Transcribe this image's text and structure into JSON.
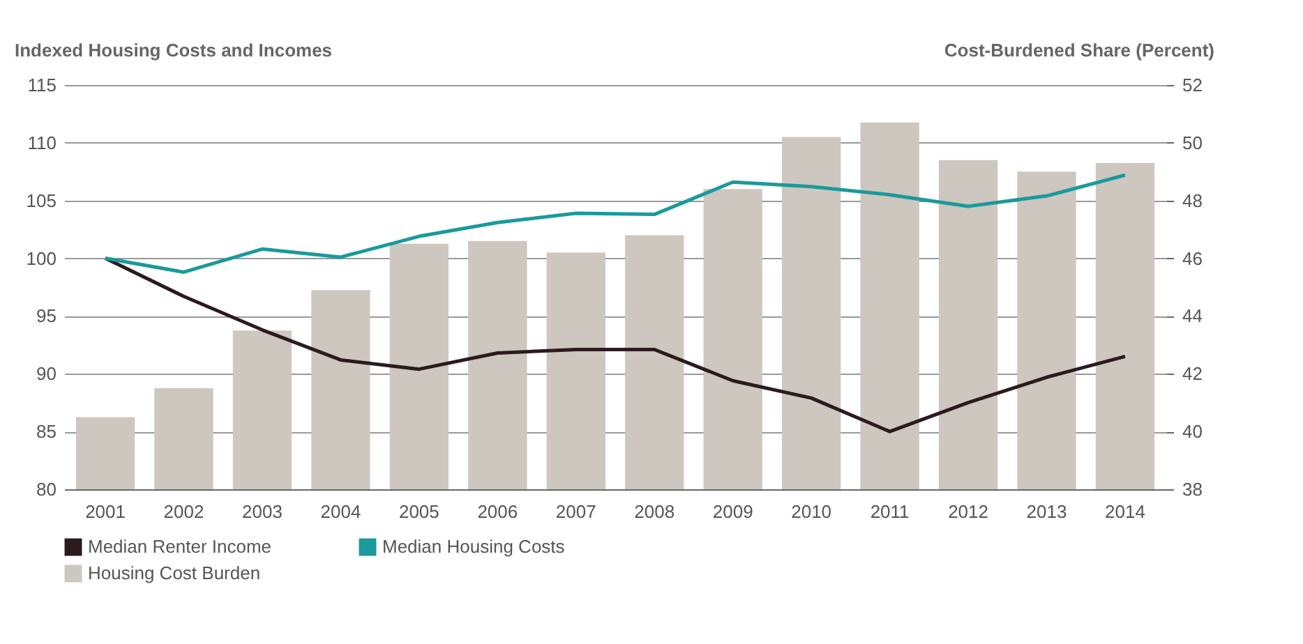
{
  "chart_data": {
    "type": "bar",
    "categories": [
      "2001",
      "2002",
      "2003",
      "2004",
      "2005",
      "2006",
      "2007",
      "2008",
      "2009",
      "2010",
      "2011",
      "2012",
      "2013",
      "2014"
    ],
    "ylabel": "Indexed Housing Costs and Incomes",
    "y2label": "Cost-Burdened Share (Percent)",
    "ylim": [
      80,
      115
    ],
    "yticks": [
      80,
      85,
      90,
      95,
      100,
      105,
      110,
      115
    ],
    "y2lim": [
      38,
      52
    ],
    "y2ticks": [
      38,
      40,
      42,
      44,
      46,
      48,
      50,
      52
    ],
    "grid": "y",
    "legend": "bottom left",
    "series": [
      {
        "name": "Median Renter Income",
        "type": "line",
        "color": "#2b1b1f",
        "values": [
          100,
          96.7,
          93.8,
          91.2,
          90.4,
          91.8,
          92.1,
          92.1,
          89.4,
          87.9,
          85.0,
          87.5,
          89.7,
          91.5
        ]
      },
      {
        "name": "Median Housing Costs",
        "type": "line",
        "color": "#1a9a9a",
        "values": [
          100,
          98.8,
          100.8,
          100.1,
          101.9,
          103.1,
          103.9,
          103.8,
          106.6,
          106.2,
          105.5,
          104.5,
          105.4,
          107.2
        ]
      },
      {
        "name": "Housing Cost Burden",
        "axis": "y2",
        "color": "#cdc7bf",
        "values": [
          40.5,
          41.5,
          43.5,
          44.9,
          46.5,
          46.6,
          46.2,
          46.8,
          48.4,
          50.2,
          50.7,
          49.4,
          49.0,
          49.3
        ]
      }
    ]
  }
}
